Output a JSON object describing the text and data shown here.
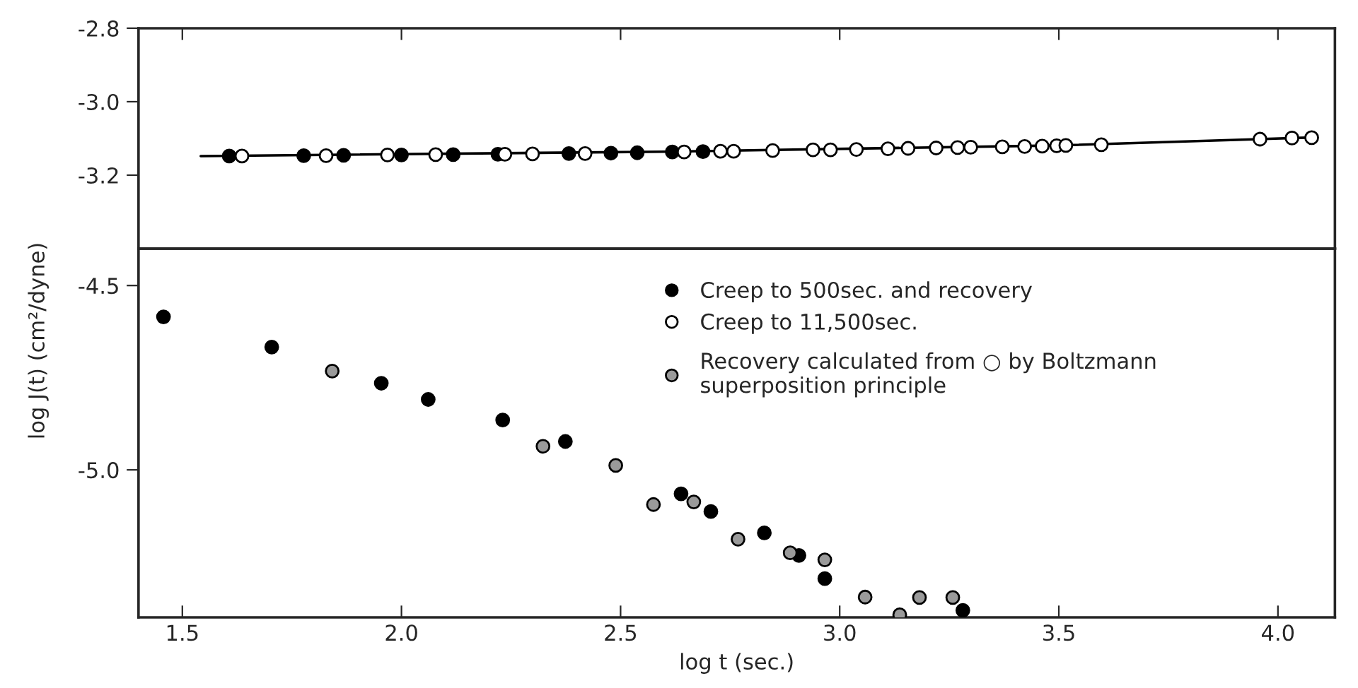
{
  "chart_data": [
    {
      "type": "scatter",
      "xlim": [
        1.4,
        4.13
      ],
      "ylim": [
        -3.4,
        -2.8
      ],
      "xticks": [
        1.5,
        2,
        2.5,
        3,
        3.5,
        4
      ],
      "yticks": [
        -2.8,
        {
          "value": -3,
          "label": "-3.0"
        },
        -3.2
      ],
      "tick_labels": "y",
      "marker": "circle",
      "legend": "bottom",
      "grid": false,
      "series": [
        {
          "type": "line",
          "marker": "none",
          "color": "#000000",
          "x": [
            1.542,
            2.6,
            3.5,
            4.09
          ],
          "values": [
            -3.148,
            -3.136,
            -3.119,
            -3.097
          ]
        },
        {
          "name": "Creep to 500sec. and recovery",
          "color": "#000000",
          "x": [
            1.607,
            1.777,
            1.868,
            2.0,
            2.118,
            2.22,
            2.382,
            2.478,
            2.538,
            2.618,
            2.688
          ],
          "values": [
            -3.148,
            -3.147,
            -3.146,
            -3.145,
            -3.144,
            -3.143,
            -3.141,
            -3.14,
            -3.139,
            -3.137,
            -3.136
          ]
        },
        {
          "name": "Creep to 11,500sec.",
          "color": "#ffffff",
          "x": [
            1.636,
            1.828,
            1.968,
            2.078,
            2.236,
            2.299,
            2.419,
            2.645,
            2.728,
            2.758,
            2.847,
            2.939,
            2.979,
            3.038,
            3.11,
            3.156,
            3.22,
            3.269,
            3.299,
            3.371,
            3.422,
            3.462,
            3.495,
            3.516,
            3.597,
            3.959,
            4.032,
            4.077
          ],
          "values": [
            -3.148,
            -3.147,
            -3.145,
            -3.144,
            -3.143,
            -3.142,
            -3.141,
            -3.137,
            -3.135,
            -3.135,
            -3.133,
            -3.131,
            -3.131,
            -3.13,
            -3.128,
            -3.127,
            -3.126,
            -3.125,
            -3.124,
            -3.123,
            -3.122,
            -3.121,
            -3.12,
            -3.119,
            -3.117,
            -3.102,
            -3.099,
            -3.098
          ]
        }
      ]
    },
    {
      "type": "scatter",
      "xlim": [
        1.4,
        4.13
      ],
      "ylim": [
        -5.4,
        -4.4
      ],
      "xticks": [
        1.5,
        {
          "value": 2,
          "label": "2.0"
        },
        2.5,
        {
          "value": 3,
          "label": "3.0"
        },
        3.5,
        {
          "value": 4,
          "label": "4.0"
        }
      ],
      "yticks": [
        -4.5,
        {
          "value": -5,
          "label": "-5.0"
        }
      ],
      "xlabel": "log t (sec.)",
      "ylabel": "log J(t) (cm²/dyne)",
      "marker": "circle",
      "legend": "top",
      "grid": false,
      "series": [
        {
          "color": "#000000",
          "x": [
            1.457,
            1.704,
            1.954,
            2.061,
            2.231,
            2.374,
            2.638,
            2.706,
            2.828,
            2.907,
            2.966,
            3.281
          ],
          "values": [
            -4.585,
            -4.667,
            -4.765,
            -4.809,
            -4.865,
            -4.923,
            -5.065,
            -5.113,
            -5.171,
            -5.232,
            -5.295,
            -5.381
          ]
        },
        {
          "name": "Recovery calculated from ○ by Boltzmann\nsuperposition principle",
          "color": "#9a9a9a",
          "x": [
            1.842,
            2.323,
            2.489,
            2.575,
            2.667,
            2.768,
            2.887,
            2.966,
            3.058,
            3.137,
            3.182,
            3.258
          ],
          "values": [
            -4.732,
            -4.936,
            -4.988,
            -5.094,
            -5.087,
            -5.188,
            -5.225,
            -5.244,
            -5.345,
            -5.393,
            -5.346,
            -5.346
          ]
        }
      ]
    }
  ]
}
